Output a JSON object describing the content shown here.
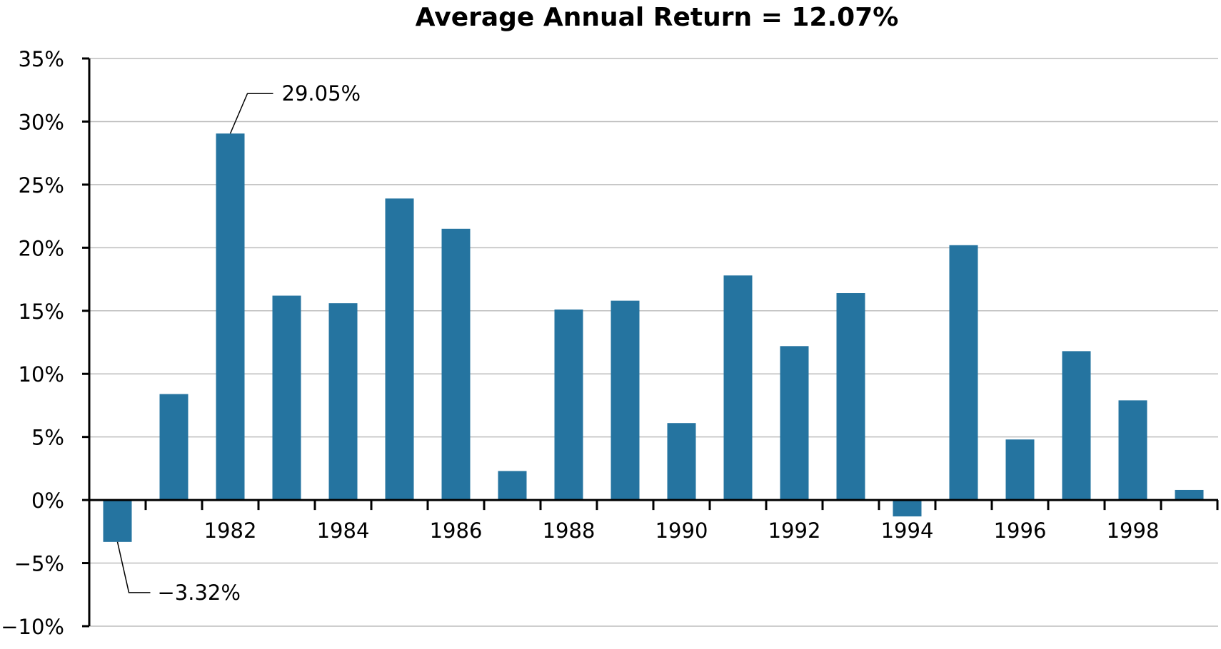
{
  "chart_data": {
    "type": "bar",
    "title": "Average Annual Return = 12.07%",
    "xlabel": "",
    "ylabel": "",
    "x": [
      1980,
      1981,
      1982,
      1983,
      1984,
      1985,
      1986,
      1987,
      1988,
      1989,
      1990,
      1991,
      1992,
      1993,
      1994,
      1995,
      1996,
      1997,
      1998,
      1999
    ],
    "values": [
      -3.32,
      8.4,
      29.05,
      16.2,
      15.6,
      23.9,
      21.5,
      2.3,
      15.1,
      15.8,
      6.1,
      17.8,
      12.2,
      16.4,
      -1.3,
      20.2,
      4.8,
      11.8,
      7.9,
      0.8
    ],
    "ylim": [
      -10,
      35
    ],
    "yticks": [
      -10,
      -5,
      0,
      5,
      10,
      15,
      20,
      25,
      30,
      35
    ],
    "ytick_labels": [
      "−10%",
      "−5%",
      "0%",
      "5%",
      "10%",
      "15%",
      "20%",
      "25%",
      "30%",
      "35%"
    ],
    "xtick_values": [
      1982,
      1984,
      1986,
      1988,
      1990,
      1992,
      1994,
      1996,
      1998
    ],
    "xtick_labels": [
      "1982",
      "1984",
      "1986",
      "1988",
      "1990",
      "1992",
      "1994",
      "1996",
      "1998"
    ],
    "grid": true,
    "bar_color": "#2574a0",
    "annotations": [
      {
        "x": 1982,
        "value": 29.05,
        "text": "29.05%"
      },
      {
        "x": 1980,
        "value": -3.32,
        "text": "−3.32%"
      }
    ]
  }
}
